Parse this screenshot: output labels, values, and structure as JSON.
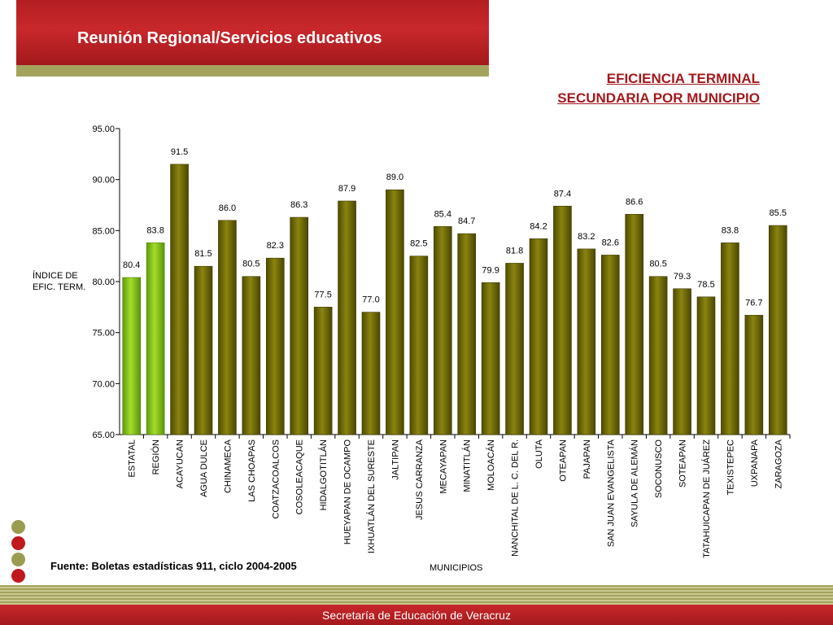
{
  "header": {
    "title": "Reunión Regional/Servicios educativos"
  },
  "chart_title": {
    "line1": "EFICIENCIA TERMINAL",
    "line2": "SECUNDARIA POR MUNICIPIO"
  },
  "source": "Fuente: Boletas estadísticas 911, ciclo 2004-2005",
  "footer": "Secretaría de Educación de Veracruz",
  "colors": {
    "highlight_bar": "#7cbf1a",
    "bar": "#6f6a00",
    "brand_red": "#b31e22",
    "olive": "#a4a35e"
  },
  "chart_data": {
    "type": "bar",
    "xlabel": "MUNICIPIOS",
    "ylabel": "ÍNDICE DE EFIC. TERM.",
    "ylim": [
      65,
      95
    ],
    "yticks": [
      "65.00",
      "70.00",
      "75.00",
      "80.00",
      "85.00",
      "90.00",
      "95.00"
    ],
    "grid": false,
    "highlight": [
      "ESTATAL",
      "REGIÓN"
    ],
    "categories": [
      "ESTATAL",
      "REGIÓN",
      "ACAYUCAN",
      "AGUA DULCE",
      "CHINAMECA",
      "LAS CHOAPAS",
      "COATZACOALCOS",
      "COSOLEACAQUE",
      "HIDALGOTITLÁN",
      "HUEYAPAN DE OCAMPO",
      "IXHUATLÁN DEL SURESTE",
      "JALTIPAN",
      "JESUS CARRANZA",
      "MECAYAPAN",
      "MINATITLÁN",
      "MOLOACÁN",
      "NANCHITAL DE L. C. DEL R.",
      "OLUTA",
      "OTEAPAN",
      "PAJAPAN",
      "SAN JUAN EVANGELISTA",
      "SAYULA DE ALEMÁN",
      "SOCONUSCO",
      "SOTEAPAN",
      "TATAHUICAPAN DE JUÁREZ",
      "TEXISTEPEC",
      "UXPANAPA",
      "ZARAGOZA"
    ],
    "values": [
      80.4,
      83.8,
      91.5,
      81.5,
      86.0,
      80.5,
      82.3,
      86.3,
      77.5,
      87.9,
      77.0,
      89.0,
      82.5,
      85.4,
      84.7,
      79.9,
      81.8,
      84.2,
      87.4,
      83.2,
      82.6,
      86.6,
      80.5,
      79.3,
      78.5,
      83.8,
      76.7,
      85.5
    ],
    "value_labels": [
      "80.4",
      "83.8",
      "91.5",
      "81.5",
      "86.0",
      "80.5",
      "82.3",
      "86.3",
      "77.5",
      "87.9",
      "77.0",
      "89.0",
      "82.5",
      "85.4",
      "84.7",
      "79.9",
      "81.8",
      "84.2",
      "87.4",
      "83.2",
      "82.6",
      "86.6",
      "80.5",
      "79.3",
      "78.5",
      "83.8",
      "76.7",
      "85.5"
    ]
  }
}
